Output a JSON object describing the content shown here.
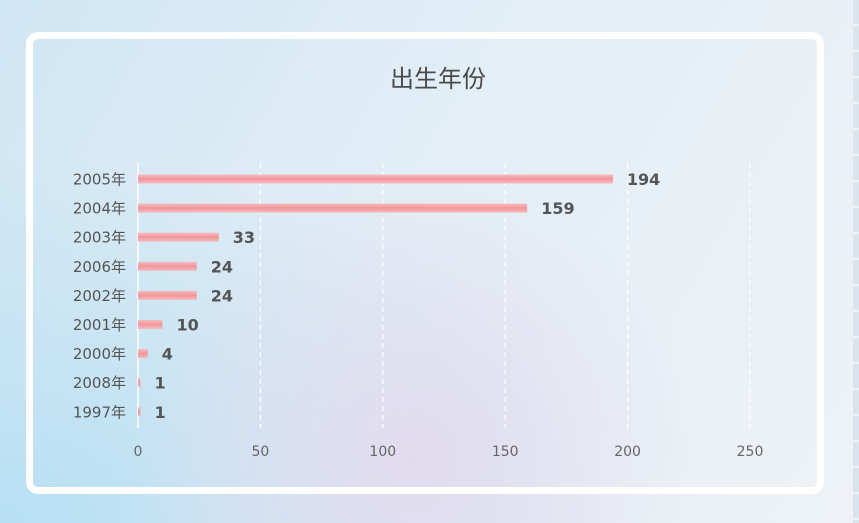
{
  "chart_data": {
    "type": "bar",
    "orientation": "horizontal",
    "title": "出生年份",
    "categories": [
      "2005年",
      "2004年",
      "2003年",
      "2006年",
      "2002年",
      "2001年",
      "2000年",
      "2008年",
      "1997年"
    ],
    "values": [
      194,
      159,
      33,
      24,
      24,
      10,
      4,
      1,
      1
    ],
    "xlim": [
      0,
      250
    ],
    "xticks": [
      0,
      50,
      100,
      150,
      200,
      250
    ],
    "grid": "vertical-dashed",
    "bar_color": "#f0969b",
    "bar_color_light": "#f6bcbd"
  }
}
